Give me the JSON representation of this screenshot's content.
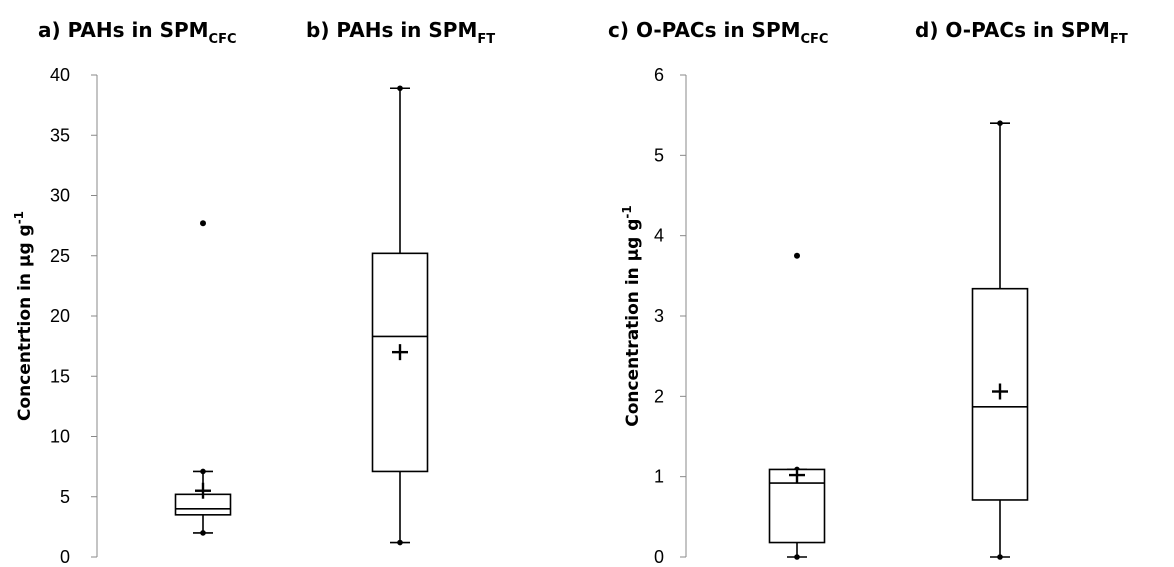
{
  "chart_data": {
    "type": "boxplot",
    "panels": [
      {
        "group": "PAHs",
        "ylabel": {
          "main": "Concentrtion in µg g",
          "sup": "-1"
        },
        "ylim": [
          0,
          40
        ],
        "yticks": [
          0,
          5,
          10,
          15,
          20,
          25,
          30,
          35,
          40
        ],
        "boxes": [
          {
            "title_main": "a) PAHs in SPM",
            "title_sub": "CFC",
            "min": 2.0,
            "q1": 3.5,
            "median": 4.0,
            "q3": 5.2,
            "max": 7.1,
            "mean": 5.5,
            "outliers": [
              27.7
            ]
          },
          {
            "title_main": "b) PAHs in SPM",
            "title_sub": "FT",
            "min": 1.2,
            "q1": 7.1,
            "median": 18.3,
            "q3": 25.2,
            "max": 38.9,
            "mean": 17.0,
            "outliers": []
          }
        ]
      },
      {
        "group": "O-PACs",
        "ylabel": {
          "main": "Concentration in µg g",
          "sup": "-1"
        },
        "ylim": [
          0,
          6
        ],
        "yticks": [
          0,
          1,
          2,
          3,
          4,
          5,
          6
        ],
        "boxes": [
          {
            "title_main": "c) O-PACs in SPM",
            "title_sub": "CFC",
            "min": 0.0,
            "q1": 0.18,
            "median": 0.92,
            "q3": 1.09,
            "max": 1.09,
            "mean": 1.02,
            "outliers": [
              3.75
            ]
          },
          {
            "title_main": "d) O-PACs in SPM",
            "title_sub": "FT",
            "min": 0.0,
            "q1": 0.71,
            "median": 1.87,
            "q3": 3.34,
            "max": 5.4,
            "mean": 2.06,
            "outliers": []
          }
        ]
      }
    ]
  }
}
